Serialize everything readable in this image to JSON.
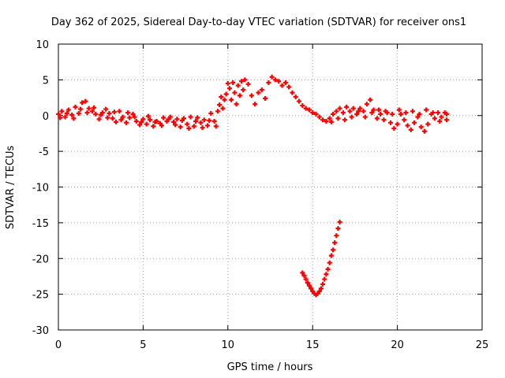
{
  "chart_data": {
    "type": "scatter",
    "title": "Day 362 of 2025, Sidereal Day-to-day VTEC variation (SDTVAR) for receiver ons1",
    "xlabel": "GPS time / hours",
    "ylabel": "SDTVAR / TECUs",
    "xlim": [
      0,
      25
    ],
    "ylim": [
      -30,
      10
    ],
    "xticks": [
      0,
      5,
      10,
      15,
      20,
      25
    ],
    "yticks": [
      10,
      5,
      0,
      -5,
      -10,
      -15,
      -20,
      -25,
      -30
    ],
    "grid": true,
    "legend": "none",
    "marker": "+",
    "series": [
      {
        "name": "main",
        "color": "#ff0000",
        "points": [
          [
            0.0,
            0.2
          ],
          [
            0.2,
            0.6
          ],
          [
            0.4,
            -0.2
          ],
          [
            0.6,
            0.8
          ],
          [
            0.8,
            0.1
          ],
          [
            1.0,
            1.2
          ],
          [
            1.2,
            0.3
          ],
          [
            1.4,
            1.8
          ],
          [
            1.6,
            2.0
          ],
          [
            1.8,
            1.0
          ],
          [
            2.0,
            0.6
          ],
          [
            2.2,
            0.2
          ],
          [
            2.4,
            -0.5
          ],
          [
            2.6,
            0.4
          ],
          [
            2.8,
            0.9
          ],
          [
            3.0,
            0.3
          ],
          [
            3.2,
            -0.4
          ],
          [
            3.4,
            -0.9
          ],
          [
            3.6,
            0.6
          ],
          [
            3.8,
            -0.2
          ],
          [
            4.0,
            -1.0
          ],
          [
            4.2,
            -0.3
          ],
          [
            4.4,
            0.2
          ],
          [
            4.6,
            -0.8
          ],
          [
            4.8,
            -1.3
          ],
          [
            5.0,
            -0.5
          ],
          [
            5.2,
            -1.2
          ],
          [
            5.4,
            -0.6
          ],
          [
            5.6,
            -1.5
          ],
          [
            5.8,
            -0.8
          ],
          [
            6.0,
            -1.1
          ],
          [
            6.2,
            -0.3
          ],
          [
            6.4,
            -0.8
          ],
          [
            6.6,
            -0.2
          ],
          [
            6.8,
            -0.9
          ],
          [
            7.0,
            -0.5
          ],
          [
            7.2,
            -1.6
          ],
          [
            7.4,
            -0.4
          ],
          [
            7.6,
            -1.2
          ],
          [
            7.8,
            -0.2
          ],
          [
            8.0,
            -1.5
          ],
          [
            8.2,
            -0.3
          ],
          [
            8.4,
            -1.0
          ],
          [
            8.6,
            -0.6
          ],
          [
            8.8,
            -1.4
          ],
          [
            9.0,
            0.3
          ],
          [
            9.2,
            -0.8
          ],
          [
            9.4,
            0.6
          ],
          [
            9.5,
            1.5
          ],
          [
            9.6,
            2.6
          ],
          [
            9.7,
            1.0
          ],
          [
            9.8,
            2.2
          ],
          [
            9.9,
            3.0
          ],
          [
            10.0,
            4.5
          ],
          [
            10.1,
            3.8
          ],
          [
            10.2,
            2.2
          ],
          [
            10.3,
            4.6
          ],
          [
            10.4,
            3.2
          ],
          [
            10.5,
            1.6
          ],
          [
            10.6,
            4.2
          ],
          [
            10.7,
            2.8
          ],
          [
            10.8,
            4.8
          ],
          [
            10.9,
            3.6
          ],
          [
            11.0,
            5.0
          ],
          [
            11.2,
            4.4
          ],
          [
            11.4,
            2.8
          ],
          [
            11.6,
            1.6
          ],
          [
            11.8,
            3.2
          ],
          [
            12.0,
            3.6
          ],
          [
            12.2,
            2.4
          ],
          [
            12.4,
            4.6
          ],
          [
            12.6,
            5.4
          ],
          [
            12.8,
            5.0
          ],
          [
            13.0,
            4.8
          ],
          [
            13.2,
            4.2
          ],
          [
            13.4,
            4.6
          ],
          [
            13.6,
            4.0
          ],
          [
            13.8,
            3.2
          ],
          [
            14.0,
            2.6
          ],
          [
            14.2,
            2.0
          ],
          [
            14.4,
            1.4
          ],
          [
            14.6,
            1.0
          ],
          [
            14.8,
            0.8
          ],
          [
            15.0,
            0.4
          ],
          [
            15.2,
            0.2
          ],
          [
            15.4,
            -0.2
          ],
          [
            15.6,
            -0.6
          ],
          [
            15.8,
            -0.8
          ],
          [
            16.0,
            -0.4
          ],
          [
            16.2,
            0.2
          ],
          [
            16.4,
            0.6
          ],
          [
            16.6,
            1.0
          ],
          [
            16.8,
            0.4
          ],
          [
            17.0,
            1.2
          ],
          [
            17.2,
            0.6
          ],
          [
            17.4,
            1.0
          ],
          [
            17.6,
            0.2
          ],
          [
            17.8,
            1.0
          ],
          [
            18.0,
            0.6
          ],
          [
            18.2,
            1.6
          ],
          [
            18.4,
            2.2
          ],
          [
            18.6,
            0.8
          ],
          [
            18.8,
            -0.4
          ],
          [
            19.0,
            0.2
          ],
          [
            19.2,
            -0.6
          ],
          [
            19.4,
            0.4
          ],
          [
            19.6,
            -1.0
          ],
          [
            19.8,
            -1.8
          ],
          [
            20.0,
            -1.2
          ],
          [
            20.2,
            0.2
          ],
          [
            20.4,
            -0.6
          ],
          [
            20.6,
            -1.4
          ],
          [
            20.8,
            -2.0
          ],
          [
            21.0,
            -1.0
          ],
          [
            21.2,
            -0.2
          ],
          [
            21.4,
            -1.6
          ],
          [
            21.6,
            -2.2
          ],
          [
            21.8,
            -1.2
          ],
          [
            22.0,
            0.2
          ],
          [
            22.2,
            -0.4
          ],
          [
            22.4,
            0.4
          ],
          [
            22.6,
            -0.2
          ],
          [
            22.8,
            0.4
          ],
          [
            22.9,
            -0.6
          ],
          [
            0.1,
            -0.3
          ],
          [
            0.5,
            0.3
          ],
          [
            0.9,
            -0.4
          ],
          [
            1.3,
            0.9
          ],
          [
            1.7,
            0.4
          ],
          [
            2.1,
            1.1
          ],
          [
            2.5,
            0.1
          ],
          [
            2.9,
            -0.3
          ],
          [
            3.3,
            0.5
          ],
          [
            3.7,
            -0.6
          ],
          [
            4.1,
            0.4
          ],
          [
            4.5,
            -0.2
          ],
          [
            4.9,
            -0.9
          ],
          [
            5.3,
            -0.1
          ],
          [
            5.7,
            -0.9
          ],
          [
            6.1,
            -1.4
          ],
          [
            6.5,
            -0.5
          ],
          [
            6.9,
            -1.3
          ],
          [
            7.3,
            -0.7
          ],
          [
            7.7,
            -1.8
          ],
          [
            8.1,
            -0.8
          ],
          [
            8.5,
            -1.7
          ],
          [
            8.9,
            -0.7
          ],
          [
            9.3,
            -1.5
          ],
          [
            16.1,
            -0.9
          ],
          [
            16.5,
            -0.4
          ],
          [
            16.9,
            -0.6
          ],
          [
            17.3,
            -0.2
          ],
          [
            17.7,
            0.6
          ],
          [
            18.1,
            -0.2
          ],
          [
            18.5,
            0.4
          ],
          [
            18.9,
            0.8
          ],
          [
            19.3,
            0.6
          ],
          [
            19.7,
            0.2
          ],
          [
            20.1,
            0.8
          ],
          [
            20.5,
            0.4
          ],
          [
            20.9,
            0.6
          ],
          [
            21.3,
            0.2
          ],
          [
            21.7,
            0.8
          ],
          [
            22.1,
            0.4
          ],
          [
            22.5,
            -0.8
          ],
          [
            22.9,
            0.2
          ]
        ]
      },
      {
        "name": "outlier",
        "color": "#ff0000",
        "points": [
          [
            14.4,
            -22.0
          ],
          [
            14.5,
            -22.4
          ],
          [
            14.6,
            -22.9
          ],
          [
            14.7,
            -23.4
          ],
          [
            14.8,
            -23.8
          ],
          [
            14.9,
            -24.2
          ],
          [
            15.0,
            -24.6
          ],
          [
            15.1,
            -24.9
          ],
          [
            15.2,
            -25.1
          ],
          [
            15.3,
            -24.9
          ],
          [
            15.4,
            -24.6
          ],
          [
            15.5,
            -24.2
          ],
          [
            15.6,
            -23.6
          ],
          [
            15.7,
            -22.9
          ],
          [
            15.8,
            -22.2
          ],
          [
            15.9,
            -21.5
          ],
          [
            16.0,
            -20.6
          ],
          [
            16.1,
            -19.6
          ],
          [
            16.2,
            -18.8
          ],
          [
            16.3,
            -17.8
          ],
          [
            16.4,
            -16.8
          ],
          [
            16.5,
            -15.8
          ],
          [
            16.6,
            -14.9
          ]
        ]
      }
    ]
  }
}
